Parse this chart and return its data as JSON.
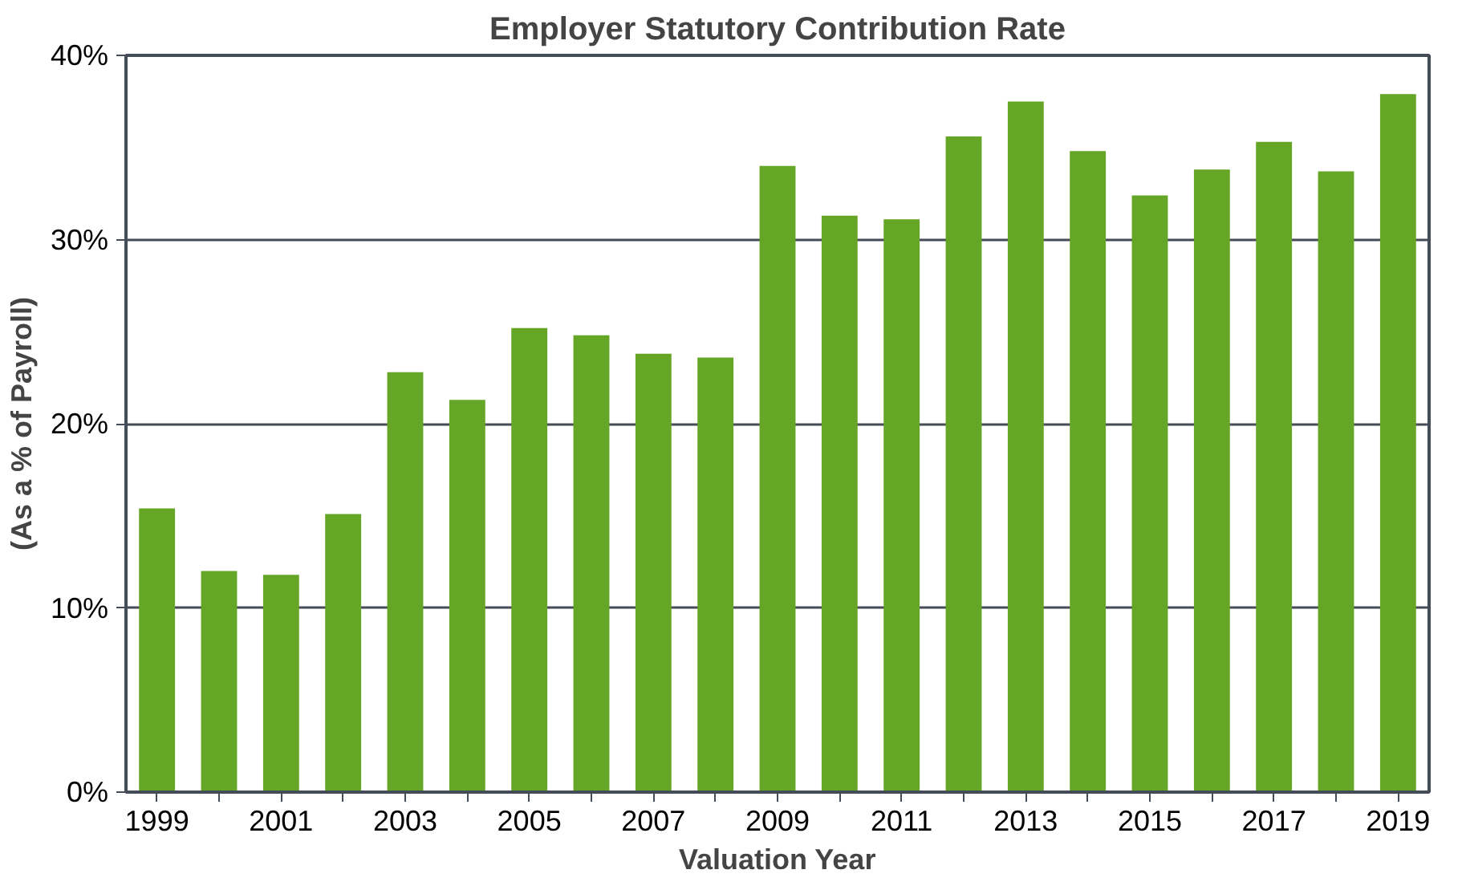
{
  "chart_data": {
    "type": "bar",
    "title": "Employer Statutory Contribution Rate",
    "xlabel": "Valuation Year",
    "ylabel": "(As a % of Payroll)",
    "categories": [
      "1999",
      null,
      "2001",
      null,
      "2003",
      null,
      "2005",
      null,
      "2007",
      null,
      "2009",
      null,
      "2011",
      null,
      "2013",
      null,
      "2015",
      null,
      "2017",
      null,
      "2019"
    ],
    "values": [
      15.4,
      12.0,
      11.8,
      15.1,
      22.8,
      21.3,
      25.2,
      24.8,
      23.8,
      23.6,
      34.0,
      31.3,
      31.1,
      35.6,
      37.5,
      34.8,
      32.4,
      33.8,
      35.3,
      33.7,
      37.9
    ],
    "color": "#66a626",
    "ylim": [
      0,
      40
    ],
    "yticks": [
      {
        "value": 0,
        "label": "0%"
      },
      {
        "value": 10,
        "label": "10%"
      },
      {
        "value": 20,
        "label": "20%"
      },
      {
        "value": 30,
        "label": "30%"
      },
      {
        "value": 40,
        "label": "40%"
      }
    ],
    "grid": "y"
  }
}
